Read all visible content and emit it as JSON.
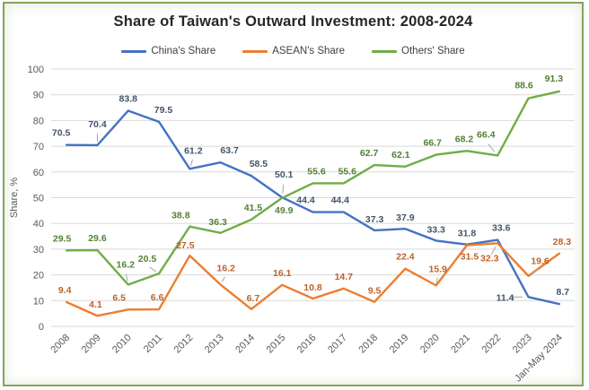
{
  "title": "Share of Taiwan's Outward Investment: 2008-2024",
  "chart_data": {
    "type": "line",
    "title": "Share of Taiwan's Outward Investment: 2008-2024",
    "categories": [
      "2008",
      "2009",
      "2010",
      "2011",
      "2012",
      "2013",
      "2014",
      "2015",
      "2016",
      "2017",
      "2018",
      "2019",
      "2020",
      "2021",
      "2022",
      "2023",
      "Jan-May 2024"
    ],
    "series": [
      {
        "name": "China's Share",
        "color": "#4472C4",
        "label_color": "#44546A",
        "values": [
          70.5,
          70.4,
          83.8,
          79.5,
          61.2,
          63.7,
          58.5,
          50.1,
          44.4,
          44.4,
          37.3,
          37.9,
          33.3,
          31.8,
          33.6,
          11.4,
          8.7
        ]
      },
      {
        "name": "ASEAN's Share",
        "color": "#ED7D31",
        "label_color": "#BE6229",
        "values": [
          9.4,
          4.1,
          6.5,
          6.6,
          27.5,
          16.2,
          6.7,
          16.1,
          10.8,
          14.7,
          9.5,
          22.4,
          15.9,
          31.5,
          32.3,
          19.6,
          28.3
        ]
      },
      {
        "name": "Others' Share",
        "color": "#70AD47",
        "label_color": "#538135",
        "values": [
          29.5,
          29.6,
          16.2,
          20.5,
          38.8,
          36.3,
          41.5,
          49.9,
          55.6,
          55.6,
          62.7,
          62.1,
          66.7,
          68.2,
          66.4,
          88.6,
          91.3
        ]
      }
    ],
    "xlabel": "",
    "ylabel": "Share, %",
    "ylim": [
      0,
      100
    ],
    "yticks": [
      0,
      10,
      20,
      30,
      40,
      50,
      60,
      70,
      80,
      90,
      100
    ],
    "grid": true,
    "grid_color": "#d9d9d9",
    "leader_color": "#a6a6a6",
    "legend_position": "top",
    "x_label_rotation": -45,
    "label_layout": [
      [
        [
          -6,
          -10,
          0
        ],
        [
          0,
          -20,
          1
        ],
        [
          0,
          -10,
          0
        ],
        [
          5,
          -10,
          0
        ],
        [
          4,
          -17,
          1
        ],
        [
          10,
          -10,
          0
        ],
        [
          8,
          -10,
          0
        ],
        [
          2,
          -22,
          1
        ],
        [
          -8,
          -10,
          0
        ],
        [
          -4,
          -10,
          0
        ],
        [
          0,
          -9,
          0
        ],
        [
          0,
          -9,
          0
        ],
        [
          0,
          -9,
          0
        ],
        [
          0,
          -9,
          0
        ],
        [
          4,
          -10,
          0
        ],
        [
          -26,
          4,
          1
        ],
        [
          4,
          -10,
          0
        ]
      ],
      [
        [
          -2,
          -10,
          0
        ],
        [
          -2,
          -9,
          0
        ],
        [
          -10,
          -10,
          0
        ],
        [
          -2,
          -10,
          0
        ],
        [
          -5,
          -8,
          0
        ],
        [
          6,
          -15,
          1
        ],
        [
          2,
          -9,
          0
        ],
        [
          0,
          -10,
          0
        ],
        [
          0,
          -9,
          0
        ],
        [
          0,
          -10,
          0
        ],
        [
          0,
          -9,
          0
        ],
        [
          0,
          -10,
          0
        ],
        [
          2,
          -15,
          1
        ],
        [
          3,
          16,
          0
        ],
        [
          -9,
          20,
          1
        ],
        [
          13,
          -13,
          1
        ],
        [
          3,
          -10,
          0
        ]
      ],
      [
        [
          -5,
          -10,
          0
        ],
        [
          0,
          -10,
          0
        ],
        [
          -3,
          -19,
          1
        ],
        [
          -13,
          -13,
          1
        ],
        [
          -10,
          -9,
          0
        ],
        [
          -3,
          -9,
          0
        ],
        [
          2,
          -10,
          0
        ],
        [
          2,
          17,
          0
        ],
        [
          4,
          -10,
          0
        ],
        [
          4,
          -10,
          0
        ],
        [
          -6,
          -10,
          0
        ],
        [
          -5,
          -10,
          0
        ],
        [
          -4,
          -10,
          0
        ],
        [
          -3,
          -10,
          0
        ],
        [
          -13,
          -20,
          1
        ],
        [
          -5,
          -11,
          0
        ],
        [
          -6,
          -11,
          0
        ]
      ]
    ]
  }
}
